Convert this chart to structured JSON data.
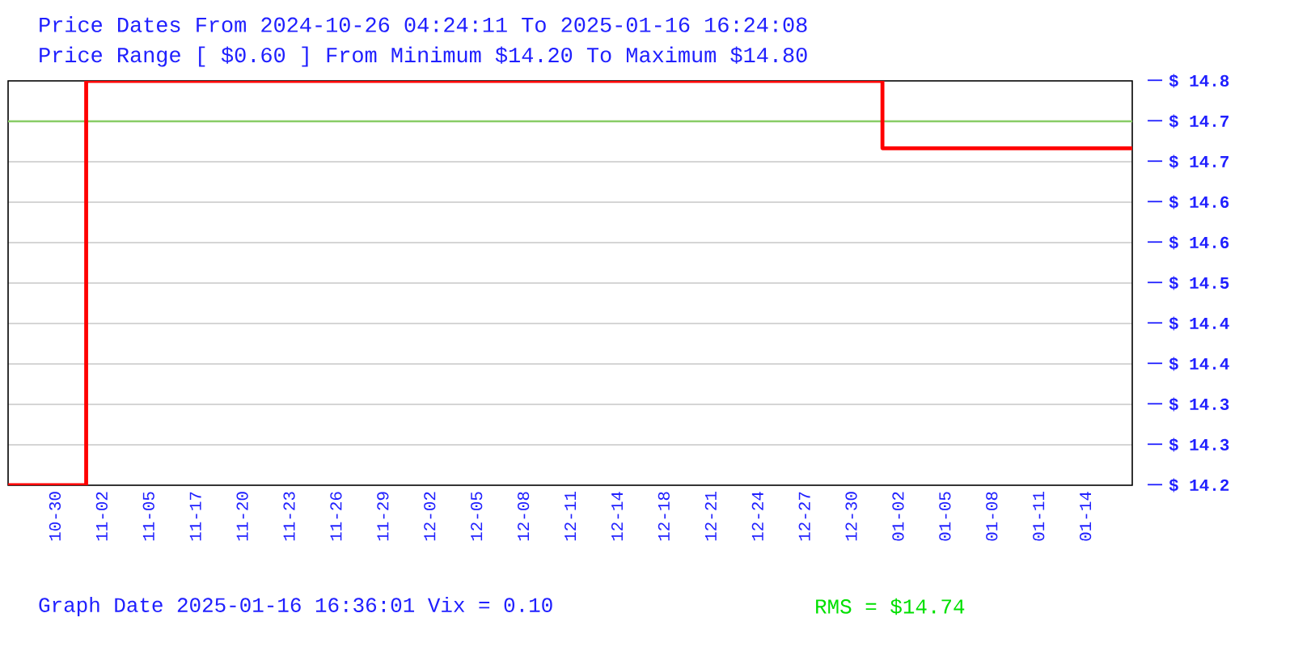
{
  "chart_data": {
    "type": "step",
    "title": "Price Dates From 2024-10-26 04:24:11 To 2025-01-16 16:24:08",
    "subtitle": "Price Range [ $0.60 ] From Minimum $14.20 To Maximum $14.80",
    "annotations": [
      "Graph Date 2025-01-16 16:36:01 Vix = 0.10",
      "RMS = $14.74"
    ],
    "categories": [
      null,
      null,
      null,
      "10-30",
      null,
      null,
      "11-02",
      null,
      null,
      "11-05",
      null,
      null,
      "11-17",
      null,
      null,
      "11-20",
      null,
      null,
      "11-23",
      null,
      null,
      "11-26",
      null,
      null,
      "11-29",
      null,
      null,
      "12-02",
      null,
      null,
      "12-05",
      null,
      null,
      "12-08",
      null,
      null,
      "12-11",
      null,
      null,
      "12-14",
      null,
      null,
      "12-18",
      null,
      null,
      "12-21",
      null,
      null,
      "12-24",
      null,
      null,
      "12-27",
      null,
      null,
      "12-30",
      null,
      null,
      "01-02",
      null,
      null,
      "01-05",
      null,
      null,
      "01-08",
      null,
      null,
      "01-11",
      null,
      null,
      "01-14",
      null,
      null,
      null
    ],
    "series": [
      {
        "color": "#ff0000",
        "values": [
          14.2,
          14.2,
          14.2,
          14.2,
          14.2,
          14.8,
          14.8,
          14.8,
          14.8,
          14.8,
          14.8,
          14.8,
          14.8,
          14.8,
          14.8,
          14.8,
          14.8,
          14.8,
          14.8,
          14.8,
          14.8,
          14.8,
          14.8,
          14.8,
          14.8,
          14.8,
          14.8,
          14.8,
          14.8,
          14.8,
          14.8,
          14.8,
          14.8,
          14.8,
          14.8,
          14.8,
          14.8,
          14.8,
          14.8,
          14.8,
          14.8,
          14.8,
          14.8,
          14.8,
          14.8,
          14.8,
          14.8,
          14.8,
          14.8,
          14.8,
          14.8,
          14.8,
          14.8,
          14.8,
          14.8,
          14.8,
          14.7,
          14.7,
          14.7,
          14.7,
          14.7,
          14.7,
          14.7,
          14.7,
          14.7,
          14.7,
          14.7,
          14.7,
          14.7,
          14.7,
          14.7,
          14.7,
          14.7
        ]
      }
    ],
    "ylim": [
      14.2,
      14.8
    ],
    "yticks": [
      {
        "value": 14.2,
        "label": "$ 14.2"
      },
      {
        "value": 14.26,
        "label": "$ 14.3"
      },
      {
        "value": 14.32,
        "label": "$ 14.3"
      },
      {
        "value": 14.38,
        "label": "$ 14.4"
      },
      {
        "value": 14.44,
        "label": "$ 14.4"
      },
      {
        "value": 14.5,
        "label": "$ 14.5"
      },
      {
        "value": 14.56,
        "label": "$ 14.6"
      },
      {
        "value": 14.62,
        "label": "$ 14.6"
      },
      {
        "value": 14.68,
        "label": "$ 14.7"
      },
      {
        "value": 14.74,
        "label": "$ 14.7"
      },
      {
        "value": 14.8,
        "label": "$ 14.8"
      }
    ],
    "ref_lines": [
      {
        "axis": "y",
        "value": 14.74,
        "color": "#88cc66"
      }
    ],
    "grid": "y",
    "marker": "none",
    "line_style": "solid"
  }
}
